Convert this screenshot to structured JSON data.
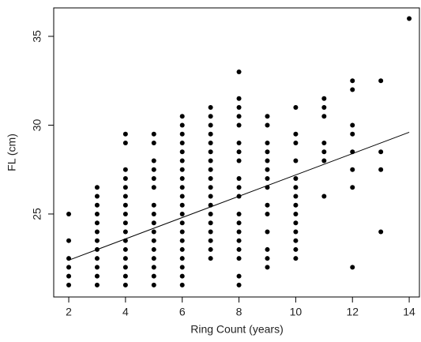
{
  "chart_data": {
    "type": "scatter",
    "xlabel": "Ring Count (years)",
    "ylabel": "FL (cm)",
    "xlim": [
      1.47,
      14.36
    ],
    "ylim": [
      20.33,
      36.6
    ],
    "xticks": [
      2,
      4,
      6,
      8,
      10,
      12,
      14
    ],
    "yticks": [
      25,
      30,
      35
    ],
    "series": [
      {
        "color": "#000000",
        "x": [
          2,
          2,
          2,
          2,
          2,
          2,
          3,
          3,
          3,
          3,
          3,
          3,
          3,
          3,
          3,
          3,
          3,
          3,
          4,
          4,
          4,
          4,
          4,
          4,
          4,
          4,
          4,
          4,
          4,
          4,
          4,
          4,
          4,
          4,
          5,
          5,
          5,
          5,
          5,
          5,
          5,
          5,
          5,
          5,
          5,
          5,
          5,
          5,
          5,
          5,
          6,
          6,
          6,
          6,
          6,
          6,
          6,
          6,
          6,
          6,
          6,
          6,
          6,
          6,
          6,
          6,
          6,
          6,
          6,
          6,
          7,
          7,
          7,
          7,
          7,
          7,
          7,
          7,
          7,
          7,
          7,
          7,
          7,
          7,
          7,
          7,
          7,
          7,
          8,
          8,
          8,
          8,
          8,
          8,
          8,
          8,
          8,
          8,
          8,
          8,
          8,
          8,
          8,
          8,
          8,
          8,
          8,
          9,
          9,
          9,
          9,
          9,
          9,
          9,
          9,
          9,
          9,
          9,
          9,
          9,
          9,
          10,
          10,
          10,
          10,
          10,
          10,
          10,
          10,
          10,
          10,
          10,
          10,
          10,
          10,
          11,
          11,
          11,
          11,
          11,
          11,
          11,
          12,
          12,
          12,
          12,
          12,
          12,
          12,
          12,
          13,
          13,
          13,
          13,
          14
        ],
        "y": [
          21,
          21.5,
          22,
          22.5,
          23.5,
          25,
          21,
          21.5,
          22,
          22.5,
          23,
          23.5,
          24,
          24.5,
          25,
          25.5,
          26,
          26.5,
          21,
          21.5,
          22,
          22.5,
          23,
          23.5,
          24,
          24.5,
          25,
          25.5,
          26,
          26.5,
          27,
          27.5,
          29,
          29.5,
          21,
          21.5,
          22,
          22.5,
          23,
          23.5,
          24,
          24.5,
          25,
          25.5,
          26.5,
          27,
          27.5,
          28,
          29,
          29.5,
          21,
          21.5,
          22,
          22.5,
          23,
          23.5,
          24,
          24.5,
          25,
          25.5,
          26,
          26.5,
          27,
          27.5,
          28,
          28.5,
          29,
          29.5,
          30,
          30.5,
          22.5,
          23,
          23.5,
          24,
          24.5,
          25,
          25.5,
          26,
          26.5,
          27,
          27.5,
          28,
          28.5,
          29,
          29.5,
          30,
          30.5,
          31,
          21,
          21.5,
          22.5,
          23,
          23.5,
          24,
          24.5,
          25,
          26,
          26.5,
          27,
          28,
          28.5,
          29,
          30,
          30.5,
          31,
          31.5,
          33,
          22,
          22.5,
          23,
          24,
          25,
          25.5,
          26.5,
          27,
          27.5,
          28,
          28.5,
          29,
          30,
          30.5,
          22.5,
          23,
          23.5,
          24,
          24.5,
          25,
          25.5,
          26,
          26.5,
          27,
          28,
          29,
          29.5,
          31,
          26,
          28,
          28.5,
          29,
          30.5,
          31,
          31.5,
          22,
          26.5,
          27.5,
          28.5,
          29.5,
          30,
          32,
          32.5,
          24,
          27.5,
          28.5,
          32.5,
          36
        ]
      }
    ],
    "fit": {
      "color": "#000000",
      "x": [
        2,
        14
      ],
      "y": [
        22.4,
        29.6
      ]
    }
  }
}
